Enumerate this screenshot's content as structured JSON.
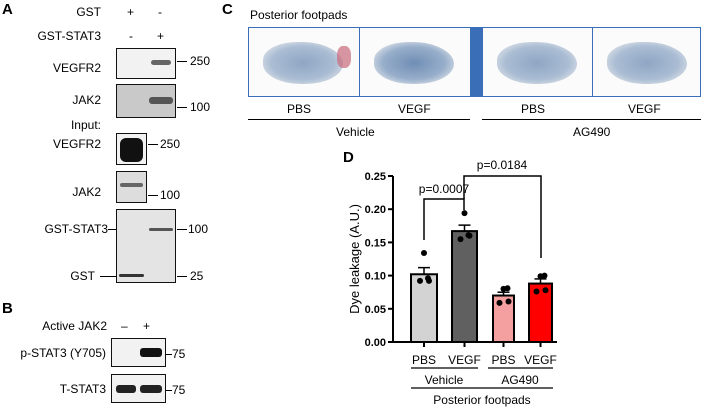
{
  "panel_a": {
    "letter": "A",
    "gst_label": "GST",
    "gst_lanes": [
      "+",
      "-"
    ],
    "gststat3_label": "GST-STAT3",
    "gststat3_lanes": [
      "-",
      "+"
    ],
    "pulldown": [
      {
        "label": "VEGFR2",
        "marker": "250"
      },
      {
        "label": "JAK2",
        "marker": "100"
      }
    ],
    "input_label": "Input:",
    "input": [
      {
        "label": "VEGFR2",
        "marker": "250"
      },
      {
        "label": "JAK2",
        "marker": "100"
      }
    ],
    "coomassie": {
      "band1_label": "GST-STAT3",
      "band2_label": "GST",
      "marker1": "100",
      "marker2": "25"
    }
  },
  "panel_b": {
    "letter": "B",
    "lane_label": "Active JAK2",
    "lanes": [
      "–",
      "+"
    ],
    "blots": [
      {
        "label": "p-STAT3 (Y705)",
        "marker": "75"
      },
      {
        "label": "T-STAT3",
        "marker": "75"
      }
    ]
  },
  "panel_c": {
    "letter": "C",
    "title": "Posterior footpads",
    "lanes": [
      "PBS",
      "VEGF",
      "PBS",
      "VEGF"
    ],
    "groups": [
      "Vehicle",
      "AG490"
    ],
    "frame_color": "#3a6fb7"
  },
  "panel_d": {
    "letter": "D"
  },
  "chart_data": {
    "type": "bar",
    "ylabel": "Dye leakage (A.U.)",
    "ylim": [
      0,
      0.25
    ],
    "yticks": [
      "0.00",
      "0.05",
      "0.10",
      "0.15",
      "0.20",
      "0.25"
    ],
    "categories": [
      "PBS",
      "VEGF",
      "PBS",
      "VEGF"
    ],
    "groups": [
      "Vehicle",
      "AG490"
    ],
    "xlabel": "Posterior footpads",
    "values": [
      0.102,
      0.167,
      0.07,
      0.088
    ],
    "errors": [
      0.01,
      0.009,
      0.005,
      0.007
    ],
    "points": [
      [
        0.134,
        0.096,
        0.092,
        0.092
      ],
      [
        0.194,
        0.161,
        0.155,
        0.16
      ],
      [
        0.08,
        0.081,
        0.059,
        0.061
      ],
      [
        0.099,
        0.1,
        0.076,
        0.078
      ]
    ],
    "colors": [
      "#d3d3d3",
      "#606060",
      "#f4a0a0",
      "#ff0000"
    ],
    "annotations": [
      {
        "text": "p=0.0007",
        "between": [
          0,
          1
        ]
      },
      {
        "text": "p=0.0184",
        "between": [
          1,
          3
        ]
      }
    ]
  }
}
